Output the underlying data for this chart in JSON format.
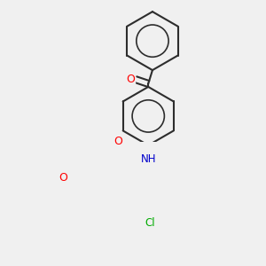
{
  "background_color": "#f0f0f0",
  "bond_color": "#2d2d2d",
  "atom_colors": {
    "O": "#ff0000",
    "N": "#0000cc",
    "Cl": "#00aa00",
    "C": "#2d2d2d"
  },
  "figure_size": [
    3.0,
    3.0
  ],
  "dpi": 100
}
